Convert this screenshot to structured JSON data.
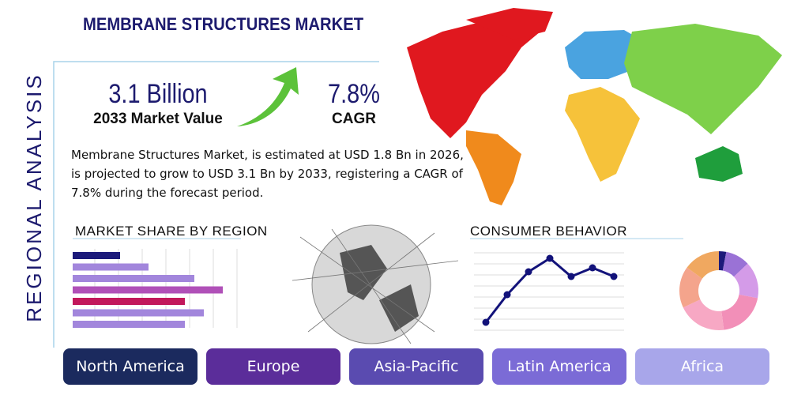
{
  "title": "MEMBRANE STRUCTURES MARKET",
  "side_label": "REGIONAL ANALYSIS",
  "stats": [
    {
      "value": "3.1 Billion",
      "label": "2033 Market Value"
    },
    {
      "value": "7.8%",
      "label": "CAGR"
    }
  ],
  "description": "Membrane Structures Market, is estimated at USD 1.8 Bn in 2026, is projected to grow to USD 3.1 Bn by 2033, registering a CAGR of 7.8% during the forecast period.",
  "market_share_by_region": {
    "title": "MARKET SHARE BY REGION",
    "values": [
      30,
      48,
      77,
      95,
      71,
      83,
      71
    ],
    "colors": [
      "#1c1a7a",
      "#a286dc",
      "#a286dc",
      "#b050b8",
      "#c2185b",
      "#a286dc",
      "#a286dc"
    ],
    "xlim": [
      0,
      100
    ]
  },
  "consumer_behavior": {
    "title": "CONSUMER BEHAVIOR",
    "values": [
      10,
      45,
      74,
      91,
      68,
      79,
      68
    ],
    "ylim": [
      0,
      100
    ],
    "color": "#12127a"
  },
  "donut": {
    "values": [
      3,
      10,
      15,
      20,
      20,
      17,
      15
    ],
    "colors": [
      "#1c1a7a",
      "#9a72d6",
      "#d49be8",
      "#f28fb8",
      "#f7a8c4",
      "#f4a48c",
      "#f0a860"
    ]
  },
  "regions": [
    "North America",
    "Europe",
    "Asia-Pacific",
    "Latin America",
    "Africa"
  ],
  "region_colors": [
    "#1b2a5e",
    "#5b2d9a",
    "#5a4bb0",
    "#7b6bd6",
    "#a8a6ea"
  ]
}
